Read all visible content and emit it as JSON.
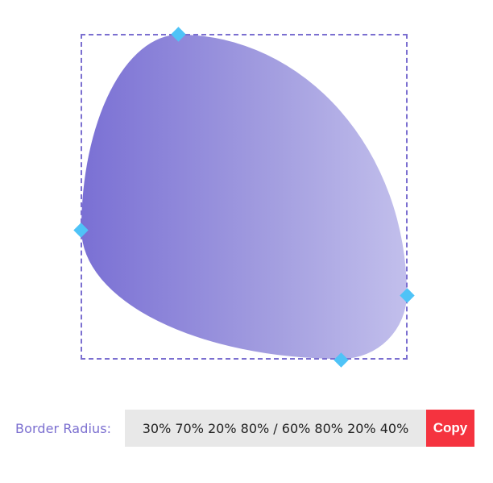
{
  "editor": {
    "border_radius_label": "Border Radius:",
    "border_radius_value": "30% 70% 20% 80% / 60% 80% 20% 40%",
    "copy_label": "Copy"
  },
  "colors": {
    "accent": "#7b6fd0",
    "handle": "#4fc3f7",
    "copy_button": "#f5333f",
    "gradient_start": "#7a70d4",
    "gradient_end": "#c2bfec"
  },
  "icons": {
    "handle": "diamond-handle-icon"
  }
}
